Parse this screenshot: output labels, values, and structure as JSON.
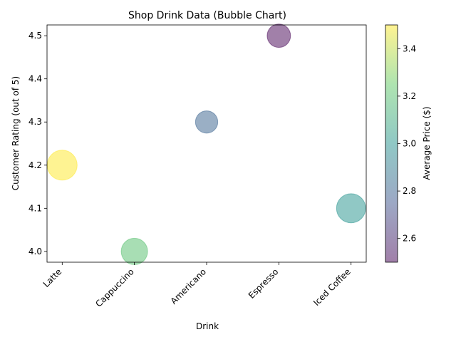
{
  "chart_data": {
    "type": "scatter",
    "title": "Shop Drink Data (Bubble Chart)",
    "xlabel": "Drink",
    "ylabel": "Customer Rating (out of 5)",
    "categories": [
      "Latte",
      "Cappuccino",
      "Americano",
      "Espresso",
      "Iced Coffee"
    ],
    "values": [
      4.2,
      4.0,
      4.3,
      4.5,
      4.1
    ],
    "price": [
      3.5,
      3.2,
      2.8,
      2.5,
      3.0
    ],
    "bubble_size": [
      900,
      700,
      500,
      550,
      850
    ],
    "ylim": [
      3.975,
      4.525
    ],
    "y_ticks": [
      "4.0",
      "4.1",
      "4.2",
      "4.3",
      "4.4",
      "4.5"
    ],
    "grid": false,
    "colorbar": {
      "label": "Average Price ($)",
      "min": 2.5,
      "max": 3.5,
      "ticks": [
        "2.6",
        "2.8",
        "3.0",
        "3.2",
        "3.4"
      ],
      "colormap": "viridis"
    }
  }
}
